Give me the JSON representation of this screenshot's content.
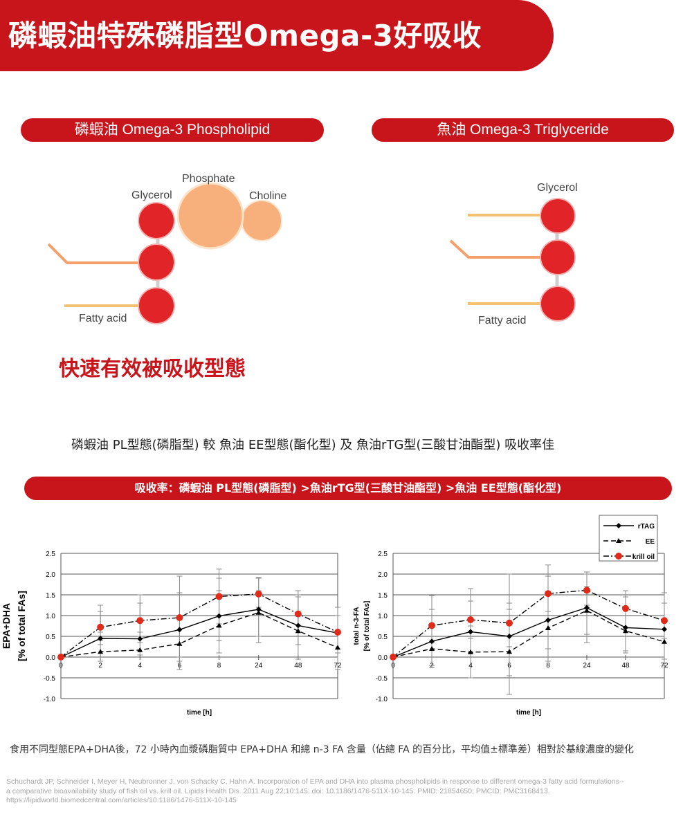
{
  "banner": {
    "title": "磷蝦油特殊磷脂型Omega-3好吸收"
  },
  "left_panel": {
    "pill": "磷蝦油 Omega-3 Phospholipid",
    "labels": {
      "phosphate": "Phosphate",
      "glycerol": "Glycerol",
      "choline": "Choline",
      "fatty_acid": "Fatty acid"
    }
  },
  "right_panel": {
    "pill": "魚油 Omega-3 Triglyceride",
    "labels": {
      "glycerol": "Glycerol",
      "fatty_acid": "Fatty acid"
    }
  },
  "tagline": "快速有效被吸收型態",
  "comparison": "磷蝦油 PL型態(磷脂型) 較 魚油 EE型態(酯化型) 及 魚油rTG型(三酸甘油酯型) 吸收率佳",
  "ranking_bar": "吸收率：磷蝦油 PL型態(磷脂型) >魚油rTG型(三酸甘油酯型) >魚油 EE型態(酯化型)",
  "colors": {
    "brand_red": "#c8141b",
    "phosphate": "#f7b07c",
    "choline": "#f7b07c",
    "glycerol": "#e02428",
    "fatty_acid_orange": "#f5a06a",
    "fatty_acid_yellow": "#f2c272",
    "krill_marker": "#e02a1a"
  },
  "caption": "食用不同型態EPA+DHA後，72 小時內血漿磷脂質中 EPA+DHA 和總 n-3 FA 含量（佔總 FA 的百分比，平均值±標準差）相對於基線濃度的變化",
  "reference": [
    "Schuchardt JP, Schneider I, Meyer H, Neubronner J, von Schacky C, Hahn A. Incorporation of EPA and DHA into plasma phospholipids in response to different omega-3 fatty acid formulations--",
    "a comparative bioavailability study of fish oil vs. krill oil. Lipids Health Dis. 2011 Aug 22;10:145. doi: 10.1186/1476-511X-10-145. PMID: 21854650; PMCID: PMC3168413.",
    "https://lipidworld.biomedcentral.com/articles/10.1186/1476-511X-10-145"
  ],
  "chart_data": [
    {
      "type": "line",
      "x": [
        "0",
        "2",
        "4",
        "6",
        "8",
        "24",
        "48",
        "72"
      ],
      "xlabel": "time [h]",
      "ylabel": [
        "EPA+DHA",
        "[% of total FAs]"
      ],
      "ylim": [
        -1.0,
        2.5
      ],
      "yticks": [
        "2.5",
        "2.0",
        "1.5",
        "1.0",
        "0.5",
        "0.0",
        "-0.5",
        "-1.0"
      ],
      "grid": true,
      "series": [
        {
          "name": "rTAG",
          "style": "solid-diamond",
          "values": [
            0.0,
            0.45,
            0.44,
            0.66,
            0.99,
            1.15,
            0.76,
            0.58
          ]
        },
        {
          "name": "EE",
          "style": "dashed-triangle",
          "values": [
            0.0,
            0.13,
            0.17,
            0.32,
            0.76,
            1.07,
            0.63,
            0.23
          ]
        },
        {
          "name": "krill oil",
          "style": "dashdot-redcircle",
          "values": [
            0.0,
            0.72,
            0.88,
            0.95,
            1.46,
            1.52,
            1.04,
            0.6
          ]
        }
      ],
      "error_bars": [
        [
          [
            0,
            0
          ],
          [
            0.6,
            1.25
          ],
          [
            0.35,
            1.5
          ],
          [
            -0.3,
            1.95
          ],
          [
            0.4,
            2.12
          ],
          [
            0.35,
            1.92
          ],
          [
            0.3,
            1.6
          ],
          [
            -0.3,
            1.2
          ]
        ],
        [
          [
            0,
            0
          ],
          [
            -0.1,
            0.4
          ],
          [
            0.05,
            0.6
          ],
          [
            0.0,
            0.95
          ],
          [
            0.1,
            1.6
          ],
          [
            0.5,
            1.6
          ],
          [
            -0.05,
            1.45
          ],
          [
            0.1,
            0.6
          ]
        ],
        [
          [
            0,
            0
          ],
          [
            0.3,
            1.1
          ],
          [
            0.5,
            1.3
          ],
          [
            -0.1,
            1.55
          ],
          [
            0.8,
            1.9
          ],
          [
            1.2,
            1.9
          ],
          [
            0.6,
            1.5
          ],
          [
            0.2,
            1.0
          ]
        ]
      ]
    },
    {
      "type": "line",
      "x": [
        "0",
        "2",
        "4",
        "6",
        "8",
        "24",
        "48",
        "72"
      ],
      "xlabel": "time [h]",
      "ylabel": [
        "total n-3-FA",
        "[% of total FAs]"
      ],
      "ylim": [
        -1.0,
        2.5
      ],
      "yticks": [
        "2.5",
        "2.0",
        "1.5",
        "1.0",
        "0.5",
        "0.0",
        "-0.5",
        "-1.0"
      ],
      "grid": true,
      "legend": "top-right",
      "series": [
        {
          "name": "rTAG",
          "style": "solid-diamond",
          "values": [
            0.0,
            0.38,
            0.61,
            0.5,
            0.89,
            1.19,
            0.71,
            0.67
          ]
        },
        {
          "name": "EE",
          "style": "dashed-triangle",
          "values": [
            0.0,
            0.2,
            0.12,
            0.13,
            0.7,
            1.12,
            0.63,
            0.37
          ]
        },
        {
          "name": "krill oil",
          "style": "dashdot-redcircle",
          "values": [
            0.0,
            0.76,
            0.9,
            0.82,
            1.53,
            1.61,
            1.17,
            0.88
          ]
        }
      ],
      "error_bars": [
        [
          [
            0,
            0
          ],
          [
            -0.2,
            1.48
          ],
          [
            0.1,
            1.65
          ],
          [
            -0.9,
            2.0
          ],
          [
            -0.1,
            2.22
          ],
          [
            0.35,
            2.0
          ],
          [
            0.1,
            1.6
          ],
          [
            -0.2,
            1.55
          ]
        ],
        [
          [
            0,
            0
          ],
          [
            -0.25,
            0.8
          ],
          [
            -0.5,
            0.75
          ],
          [
            -0.45,
            1.15
          ],
          [
            0.2,
            1.5
          ],
          [
            0.55,
            1.7
          ],
          [
            0.15,
            1.45
          ],
          [
            -0.05,
            0.9
          ]
        ],
        [
          [
            0,
            0
          ],
          [
            0.35,
            1.15
          ],
          [
            0.45,
            1.35
          ],
          [
            0.25,
            1.3
          ],
          [
            1.1,
            1.95
          ],
          [
            1.25,
            2.05
          ],
          [
            0.7,
            1.6
          ],
          [
            0.45,
            1.3
          ]
        ]
      ]
    }
  ]
}
